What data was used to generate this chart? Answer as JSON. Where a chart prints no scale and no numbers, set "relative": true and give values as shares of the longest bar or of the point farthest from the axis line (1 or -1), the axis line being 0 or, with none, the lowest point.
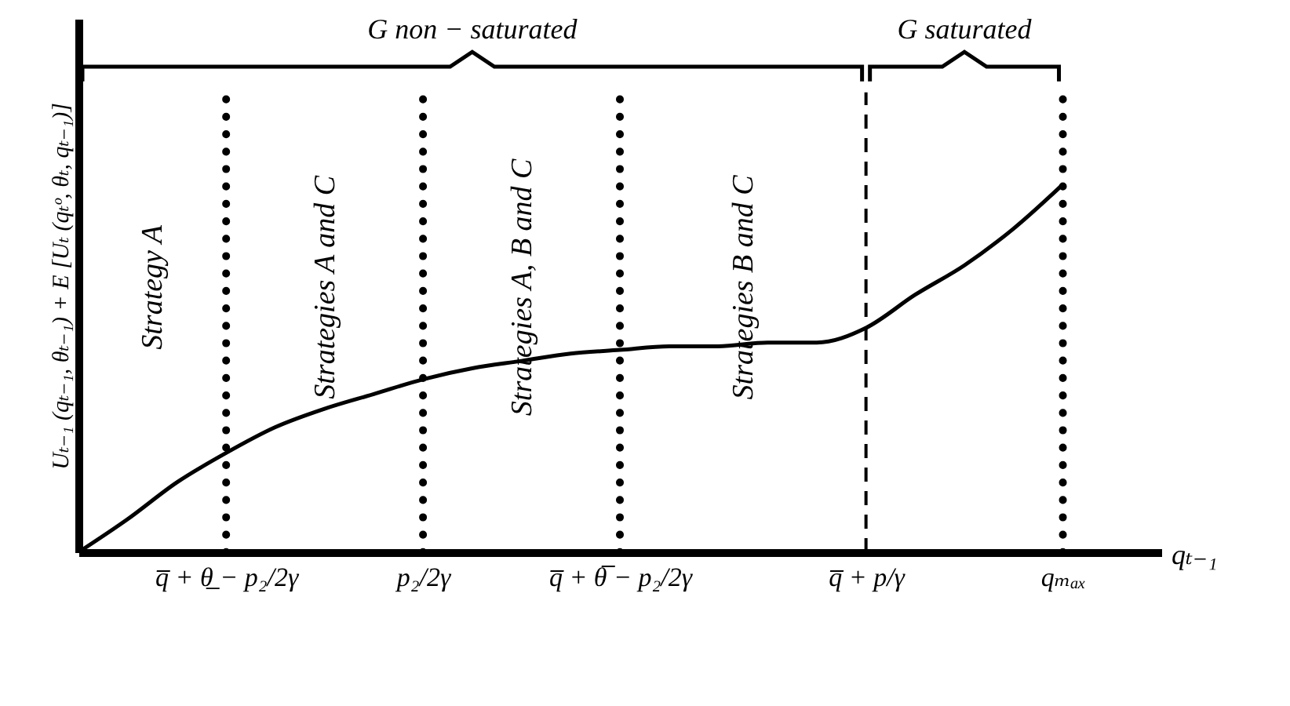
{
  "chart_data": {
    "type": "line",
    "relative": true,
    "color": "#000000",
    "line_style": "solid",
    "xlabel": "qₜ₋₁",
    "ylabel": "Uₜ₋₁ (qₜ₋₁, θₜ₋₁) + E [Uₜ (qₜᵒ, θₜ, qₜ₋₁)]",
    "categories": [
      null,
      null,
      null,
      "q̅ + θ̲ − p₂/2γ",
      null,
      null,
      null,
      "p₂/2γ",
      null,
      null,
      null,
      "q̅ + θ̅ − p₂/2γ",
      null,
      null,
      null,
      null,
      "q̅ + p/γ",
      null,
      null,
      null,
      "qₘₐₓ",
      null,
      null
    ],
    "values": [
      0,
      0.09,
      0.19,
      0.27,
      0.34,
      0.39,
      0.43,
      0.47,
      0.5,
      0.52,
      0.54,
      0.55,
      0.56,
      0.56,
      0.57,
      0.57,
      0.61,
      0.7,
      0.78,
      0.88,
      1.0,
      null,
      null
    ],
    "ref_lines": [
      {
        "axis": "x",
        "value": "q̅ + θ̲ − p₂/2γ",
        "line_style": "dotted"
      },
      {
        "axis": "x",
        "value": "p₂/2γ",
        "line_style": "dotted"
      },
      {
        "axis": "x",
        "value": "q̅ + θ̅ − p₂/2γ",
        "line_style": "dotted"
      },
      {
        "axis": "x",
        "value": "q̅ + p/γ",
        "line_style": "dashed"
      },
      {
        "axis": "x",
        "value": "qₘₐₓ",
        "line_style": "dotted"
      }
    ],
    "annotations": [
      "Strategy A",
      "Strategies A and C",
      "Strategies A, B and C",
      "Strategies B and C",
      "G non − saturated",
      "G saturated"
    ]
  }
}
